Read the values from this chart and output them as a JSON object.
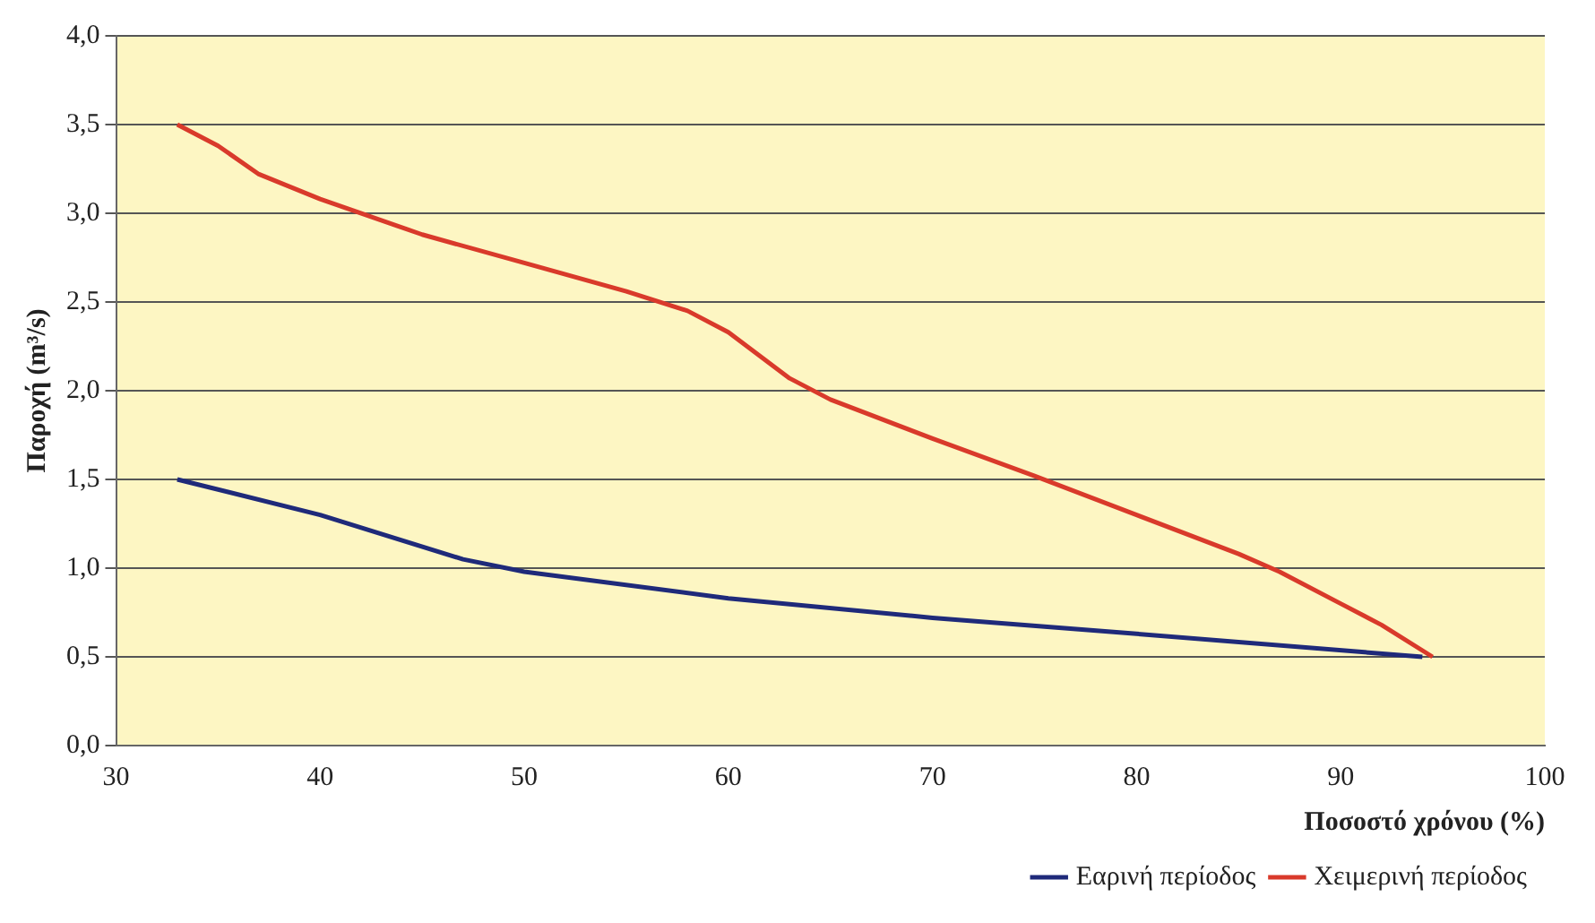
{
  "chart_data": {
    "type": "line",
    "xlabel": "Ποσοστό χρόνου (%)",
    "ylabel": "Παροχή (m³/s)",
    "xlim": [
      30,
      100
    ],
    "xticks": [
      30,
      40,
      50,
      60,
      70,
      80,
      90,
      100
    ],
    "ylim": [
      0,
      4
    ],
    "yticks": [
      {
        "value": 0,
        "label": "0,0"
      },
      {
        "value": 0.5,
        "label": "0,5"
      },
      {
        "value": 1,
        "label": "1,0"
      },
      {
        "value": 1.5,
        "label": "1,5"
      },
      {
        "value": 2,
        "label": "2,0"
      },
      {
        "value": 2.5,
        "label": "2,5"
      },
      {
        "value": 3,
        "label": "3,0"
      },
      {
        "value": 3.5,
        "label": "3,5"
      },
      {
        "value": 4,
        "label": "4,0"
      }
    ],
    "grid": "y",
    "legend": "bottom right",
    "marker": "none",
    "line_style": "solid",
    "series": [
      {
        "name": "Εαρινή περίοδος",
        "color": "#1f2a7a",
        "x": [
          33,
          40,
          47,
          50,
          60,
          70,
          80,
          94
        ],
        "values": [
          1.5,
          1.3,
          1.05,
          0.98,
          0.83,
          0.72,
          0.63,
          0.5
        ]
      },
      {
        "name": "Χειμερινή περίοδος",
        "color": "#d93a2b",
        "x": [
          33,
          35,
          37,
          40,
          45,
          50,
          55,
          58,
          60,
          63,
          65,
          70,
          75,
          80,
          85,
          87,
          90,
          92,
          94.5
        ],
        "values": [
          3.5,
          3.38,
          3.22,
          3.08,
          2.88,
          2.72,
          2.56,
          2.45,
          2.33,
          2.07,
          1.95,
          1.73,
          1.52,
          1.3,
          1.08,
          0.98,
          0.8,
          0.68,
          0.5
        ]
      }
    ]
  }
}
